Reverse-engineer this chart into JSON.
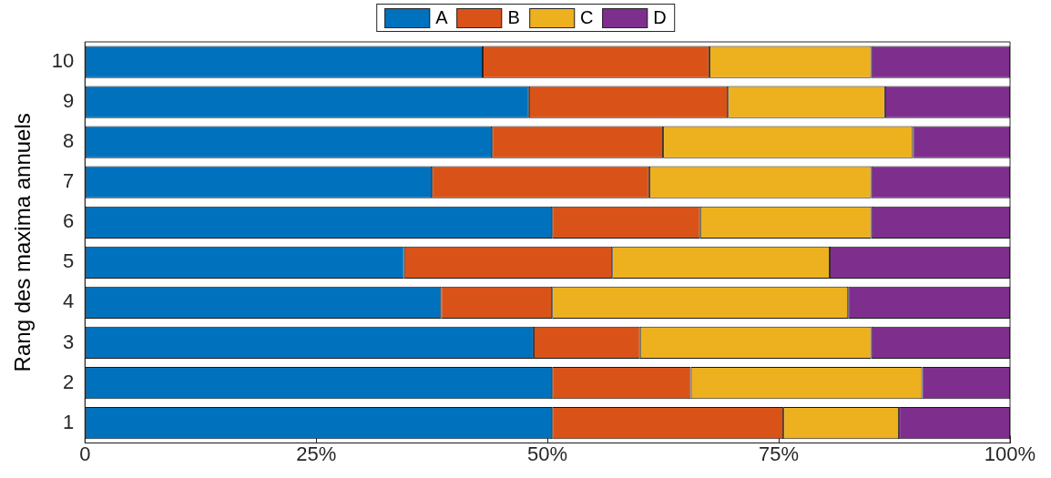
{
  "chart_data": {
    "type": "bar",
    "orientation": "horizontal",
    "stacked": true,
    "ylabel": "Rang des maxima annuels",
    "categories": [
      "10",
      "9",
      "8",
      "7",
      "6",
      "5",
      "4",
      "3",
      "2",
      "1"
    ],
    "series": [
      {
        "name": "A",
        "color": "#0072bd",
        "values": [
          43,
          48,
          44,
          37.5,
          50.5,
          34.5,
          38.5,
          48.5,
          50.5,
          50.5
        ]
      },
      {
        "name": "B",
        "color": "#d95319",
        "values": [
          24.5,
          21.5,
          18.5,
          23.5,
          16,
          22.5,
          12,
          11.5,
          15,
          25
        ]
      },
      {
        "name": "C",
        "color": "#edb120",
        "values": [
          17.5,
          17,
          27,
          24,
          18.5,
          23.5,
          32,
          25,
          25,
          12.5
        ]
      },
      {
        "name": "D",
        "color": "#7e2f8e",
        "values": [
          15,
          13.5,
          10.5,
          15,
          15,
          19.5,
          17.5,
          15,
          9.5,
          12
        ]
      }
    ],
    "xlim": [
      0,
      100
    ],
    "xticks": [
      0,
      {
        "value": 25,
        "label": "25%"
      },
      {
        "value": 50,
        "label": "50%"
      },
      {
        "value": 75,
        "label": "75%"
      },
      {
        "value": 100,
        "label": "100%"
      }
    ],
    "grid": false,
    "legend": "top"
  }
}
